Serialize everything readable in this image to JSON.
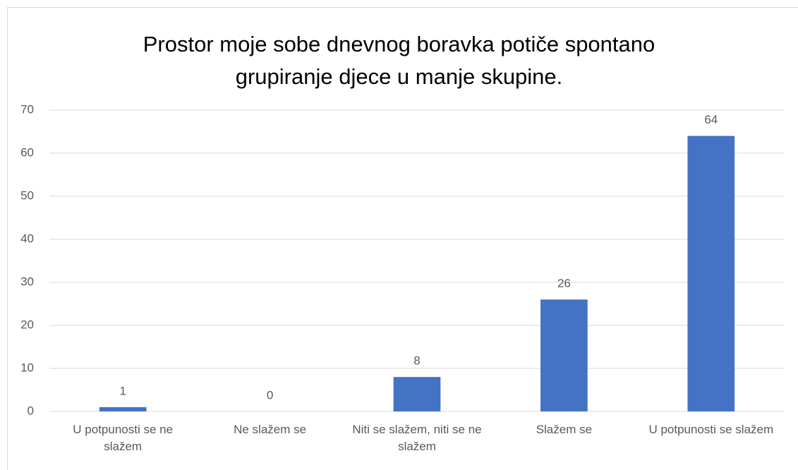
{
  "chart_data": {
    "type": "bar",
    "title": "Prostor moje sobe dnevnog boravka potiče spontano grupiranje djece u manje skupine.",
    "categories": [
      "U potpunosti se ne slažem",
      "Ne slažem se",
      "Niti se slažem, niti se ne slažem",
      "Slažem se",
      "U potpunosti se slažem"
    ],
    "values": [
      1,
      0,
      8,
      26,
      64
    ],
    "color": "#4472c4",
    "ylim": [
      0,
      70
    ],
    "yticks": [
      0,
      10,
      20,
      30,
      40,
      50,
      60,
      70
    ],
    "grid": true
  }
}
